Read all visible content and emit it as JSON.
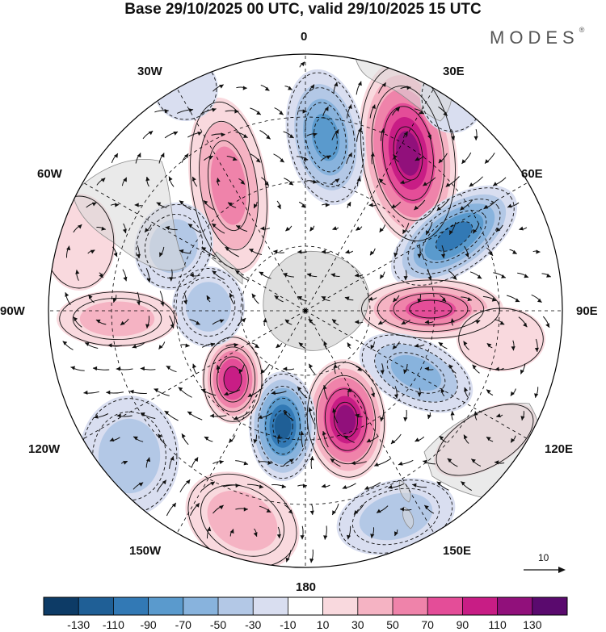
{
  "title": "Base 29/10/2025 00 UTC, valid 29/10/2025 15 UTC",
  "brand": "MODES",
  "brand_mark": "®",
  "longitude_labels": {
    "n": "0",
    "ne30": "30E",
    "ne60": "60E",
    "e": "90E",
    "se120": "120E",
    "se150": "150E",
    "s": "180",
    "sw150": "150W",
    "sw120": "120W",
    "w": "90W",
    "nw60": "60W",
    "nw30": "30W"
  },
  "reference_vector_label": "10",
  "colorbar": {
    "colors": [
      "#0d3b66",
      "#1f5f96",
      "#3279b5",
      "#5a9acd",
      "#88b3dd",
      "#b3c8e6",
      "#d9def0",
      "#ffffff",
      "#f9d9de",
      "#f5b3c3",
      "#ef83aa",
      "#e44d98",
      "#c81d85",
      "#91107b",
      "#5a0a6e"
    ],
    "labels": [
      "-130",
      "-110",
      "-90",
      "-70",
      "-50",
      "-30",
      "-10",
      "10",
      "30",
      "50",
      "70",
      "90",
      "110",
      "130"
    ]
  },
  "map_colors": {
    "land": "#d9d9d9",
    "coast": "#8a8a8a",
    "grid": "#000000",
    "frame": "#000000"
  }
}
